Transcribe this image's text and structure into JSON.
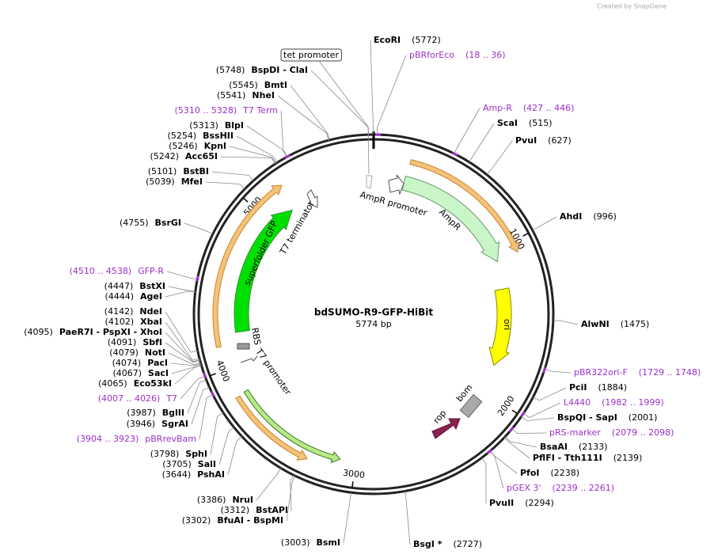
{
  "header": {
    "credit": "Created by SnapGene"
  },
  "plasmid": {
    "name": "bdSUMO-R9-GFP-HiBit",
    "length": "5774 bp"
  },
  "ring_ticks": [
    1000,
    2000,
    3000,
    4000,
    5000
  ],
  "features": [
    "tet promoter",
    "AmpR promoter",
    "AmpR",
    "ori",
    "bom",
    "rop",
    "T7 promoter",
    "RBS",
    "superfolder GFP",
    "T7 terminator"
  ],
  "sites": [
    {
      "name": "EcoRI",
      "pos": "(5772)",
      "color": "#000000"
    },
    {
      "name": "pBRforEco",
      "pos": "(18 .. 36)",
      "color": "#9b30c8"
    },
    {
      "name": "Amp-R",
      "pos": "(427 .. 446)",
      "color": "#9b30c8"
    },
    {
      "name": "ScaI",
      "pos": "(515)",
      "color": "#000000"
    },
    {
      "name": "PvuI",
      "pos": "(627)",
      "color": "#000000"
    },
    {
      "name": "AhdI",
      "pos": "(996)",
      "color": "#000000"
    },
    {
      "name": "AlwNI",
      "pos": "(1475)",
      "color": "#000000"
    },
    {
      "name": "pBR322ori-F",
      "pos": "(1729 .. 1748)",
      "color": "#9b30c8"
    },
    {
      "name": "PciI",
      "pos": "(1884)",
      "color": "#000000"
    },
    {
      "name": "L4440",
      "pos": "(1982 .. 1999)",
      "color": "#9b30c8"
    },
    {
      "name": "BspQI - SapI",
      "pos": "(2001)",
      "color": "#000000"
    },
    {
      "name": "pRS-marker",
      "pos": "(2079 .. 2098)",
      "color": "#9b30c8"
    },
    {
      "name": "BsaAI",
      "pos": "(2133)",
      "color": "#000000"
    },
    {
      "name": "PflFI - Tth111I",
      "pos": "(2139)",
      "color": "#000000"
    },
    {
      "name": "PfoI",
      "pos": "(2238)",
      "color": "#000000"
    },
    {
      "name": "pGEX 3'",
      "pos": "(2239 .. 2261)",
      "color": "#9b30c8"
    },
    {
      "name": "PvuII",
      "pos": "(2294)",
      "color": "#000000"
    },
    {
      "name": "BsgI *",
      "pos": "(2727)",
      "color": "#000000"
    },
    {
      "name": "BsmI",
      "pos": "(3003)",
      "color": "#000000"
    },
    {
      "name": "BfuAI - BspMI",
      "pos": "(3302)",
      "color": "#000000"
    },
    {
      "name": "BstAPI",
      "pos": "(3312)",
      "color": "#000000"
    },
    {
      "name": "NruI",
      "pos": "(3386)",
      "color": "#000000"
    },
    {
      "name": "PshAI",
      "pos": "(3644)",
      "color": "#000000"
    },
    {
      "name": "SalI",
      "pos": "(3705)",
      "color": "#000000"
    },
    {
      "name": "SphI",
      "pos": "(3798)",
      "color": "#000000"
    },
    {
      "name": "pBRrevBam",
      "pos": "(3904 .. 3923)",
      "color": "#9b30c8"
    },
    {
      "name": "SgrAI",
      "pos": "(3946)",
      "color": "#000000"
    },
    {
      "name": "BglII",
      "pos": "(3987)",
      "color": "#000000"
    },
    {
      "name": "T7",
      "pos": "(4007 .. 4026)",
      "color": "#9b30c8"
    },
    {
      "name": "Eco53kI",
      "pos": "(4065)",
      "color": "#000000"
    },
    {
      "name": "SacI",
      "pos": "(4067)",
      "color": "#000000"
    },
    {
      "name": "PacI",
      "pos": "(4074)",
      "color": "#000000"
    },
    {
      "name": "NotI",
      "pos": "(4079)",
      "color": "#000000"
    },
    {
      "name": "SbfI",
      "pos": "(4091)",
      "color": "#000000"
    },
    {
      "name": "PaeR7I - PspXI - XhoI",
      "pos": "(4095)",
      "color": "#000000"
    },
    {
      "name": "XbaI",
      "pos": "(4102)",
      "color": "#000000"
    },
    {
      "name": "NdeI",
      "pos": "(4142)",
      "color": "#000000"
    },
    {
      "name": "AgeI",
      "pos": "(4444)",
      "color": "#000000"
    },
    {
      "name": "BstXI",
      "pos": "(4447)",
      "color": "#000000"
    },
    {
      "name": "GFP-R",
      "pos": "(4510 .. 4538)",
      "color": "#9b30c8"
    },
    {
      "name": "BsrGI",
      "pos": "(4755)",
      "color": "#000000"
    },
    {
      "name": "MfeI",
      "pos": "(5039)",
      "color": "#000000"
    },
    {
      "name": "BstBI",
      "pos": "(5101)",
      "color": "#000000"
    },
    {
      "name": "Acc65I",
      "pos": "(5242)",
      "color": "#000000"
    },
    {
      "name": "KpnI",
      "pos": "(5246)",
      "color": "#000000"
    },
    {
      "name": "BssHII",
      "pos": "(5254)",
      "color": "#000000"
    },
    {
      "name": "BlpI",
      "pos": "(5313)",
      "color": "#000000"
    },
    {
      "name": "T7 Term",
      "pos": "(5310 .. 5328)",
      "color": "#9b30c8"
    },
    {
      "name": "NheI",
      "pos": "(5541)",
      "color": "#000000"
    },
    {
      "name": "BmtI",
      "pos": "(5545)",
      "color": "#000000"
    },
    {
      "name": "BspDI - ClaI",
      "pos": "(5748)",
      "color": "#000000"
    }
  ]
}
